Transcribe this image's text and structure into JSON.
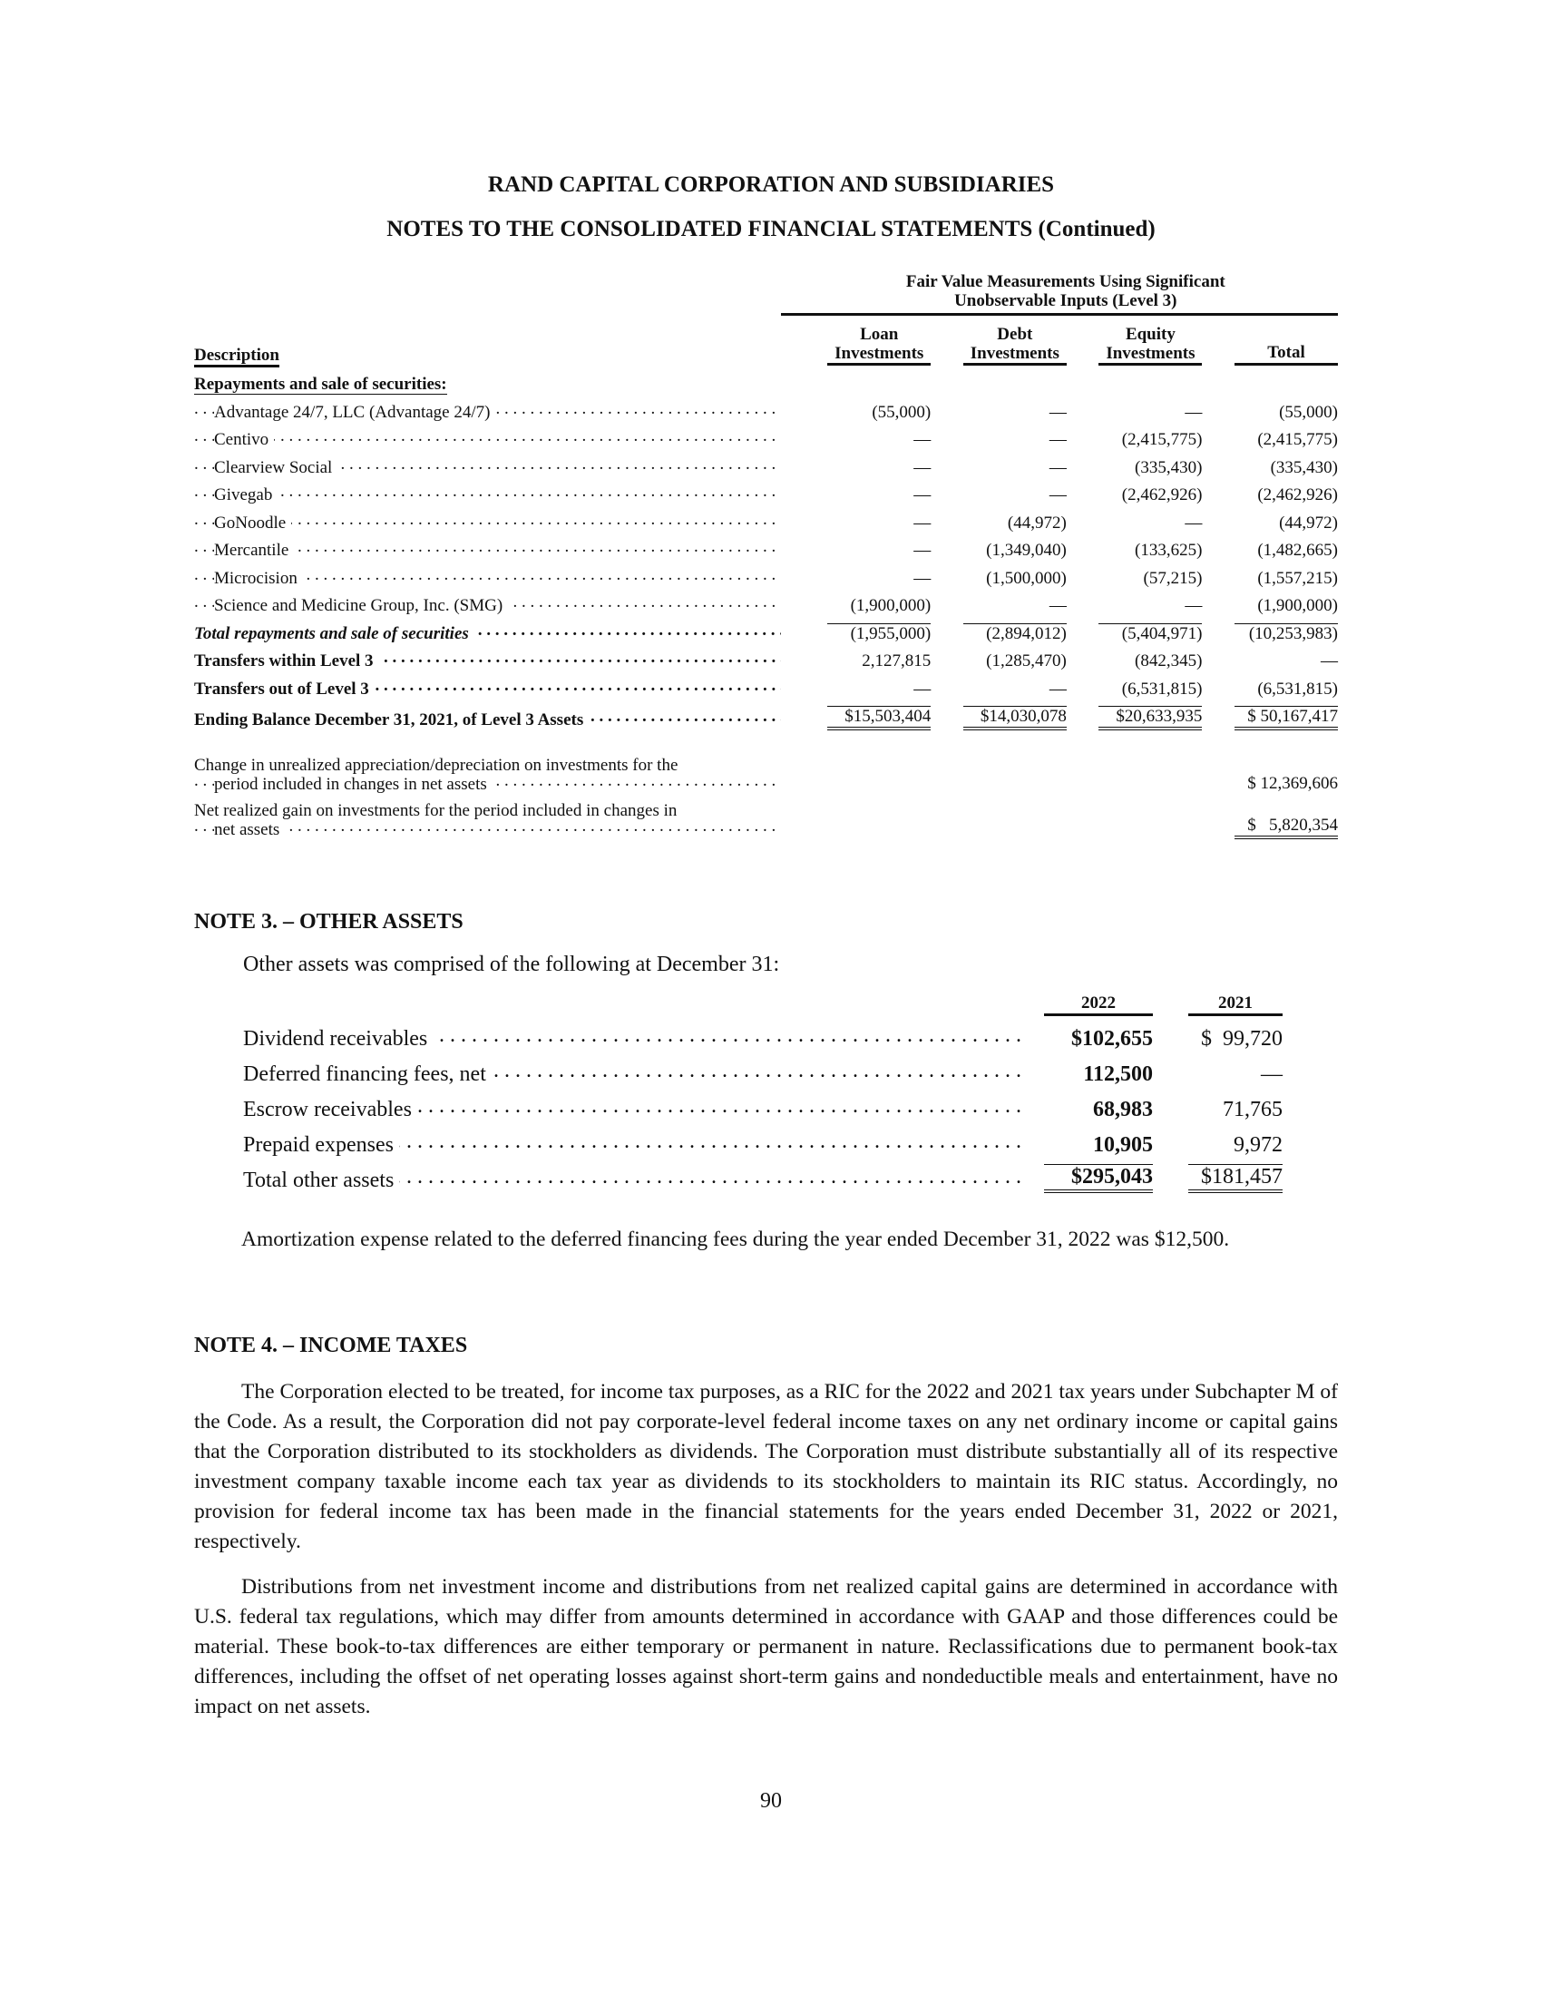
{
  "header": {
    "company": "RAND CAPITAL CORPORATION AND SUBSIDIARIES",
    "subtitle": "NOTES TO THE CONSOLIDATED FINANCIAL STATEMENTS (Continued)"
  },
  "level3_table": {
    "group_header_line1": "Fair Value Measurements Using Significant",
    "group_header_line2": "Unobservable Inputs (Level 3)",
    "columns": {
      "description": "Description",
      "loan_1": "Loan",
      "loan_2": "Investments",
      "debt_1": "Debt",
      "debt_2": "Investments",
      "equity_1": "Equity",
      "equity_2": "Investments",
      "total": "Total"
    },
    "section_label": "Repayments and sale of securities:",
    "rows": [
      {
        "label": "Advantage 24/7, LLC (Advantage 24/7)",
        "loan": "(55,000)",
        "debt": "—",
        "equity": "—",
        "total": "(55,000)"
      },
      {
        "label": "Centivo",
        "loan": "—",
        "debt": "—",
        "equity": "(2,415,775)",
        "total": "(2,415,775)"
      },
      {
        "label": "Clearview Social",
        "loan": "—",
        "debt": "—",
        "equity": "(335,430)",
        "total": "(335,430)"
      },
      {
        "label": "Givegab",
        "loan": "—",
        "debt": "—",
        "equity": "(2,462,926)",
        "total": "(2,462,926)"
      },
      {
        "label": "GoNoodle",
        "loan": "—",
        "debt": "(44,972)",
        "equity": "—",
        "total": "(44,972)"
      },
      {
        "label": "Mercantile",
        "loan": "—",
        "debt": "(1,349,040)",
        "equity": "(133,625)",
        "total": "(1,482,665)"
      },
      {
        "label": "Microcision",
        "loan": "—",
        "debt": "(1,500,000)",
        "equity": "(57,215)",
        "total": "(1,557,215)"
      },
      {
        "label": "Science and Medicine Group, Inc. (SMG)",
        "loan": "(1,900,000)",
        "debt": "—",
        "equity": "—",
        "total": "(1,900,000)"
      }
    ],
    "total_row": {
      "label": "Total repayments and sale of securities",
      "loan": "(1,955,000)",
      "debt": "(2,894,012)",
      "equity": "(5,404,971)",
      "total": "(10,253,983)"
    },
    "transfers_within": {
      "label": "Transfers within Level 3",
      "loan": "2,127,815",
      "debt": "(1,285,470)",
      "equity": "(842,345)",
      "total": "—"
    },
    "transfers_out": {
      "label": "Transfers out of Level 3",
      "loan": "—",
      "debt": "—",
      "equity": "(6,531,815)",
      "total": "(6,531,815)"
    },
    "ending": {
      "label": "Ending Balance December 31, 2021, of Level 3 Assets",
      "loan": "$15,503,404",
      "debt": "$14,030,078",
      "equity": "$20,633,935",
      "total": "$ 50,167,417"
    },
    "unrealized": {
      "line1": "Change in unrealized appreciation/depreciation on investments for the",
      "line2": "period included in changes in net assets",
      "total": "$ 12,369,606"
    },
    "realized": {
      "line1": "Net realized gain on investments for the period included in changes in",
      "line2": "net assets",
      "total": "$   5,820,354"
    }
  },
  "note3": {
    "heading": "NOTE 3. – OTHER ASSETS",
    "intro": "Other assets was comprised of the following at December 31:",
    "col_2022": "2022",
    "col_2021": "2021",
    "rows": [
      {
        "label": "Dividend receivables",
        "v2022": "$102,655",
        "v2021": "$  99,720"
      },
      {
        "label": "Deferred financing fees, net",
        "v2022": "112,500",
        "v2021": "—"
      },
      {
        "label": "Escrow receivables",
        "v2022": "68,983",
        "v2021": "71,765"
      },
      {
        "label": "Prepaid expenses",
        "v2022": "10,905",
        "v2021": "9,972"
      }
    ],
    "total": {
      "label": "Total other assets",
      "v2022": "$295,043",
      "v2021": "$181,457"
    },
    "amortization": "Amortization expense related to the deferred financing fees during the year ended December 31, 2022 was $12,500."
  },
  "note4": {
    "heading": "NOTE 4. – INCOME TAXES",
    "p1": "The Corporation elected to be treated, for income tax purposes, as a RIC for the 2022 and 2021 tax years under Subchapter M of the Code. As a result, the Corporation did not pay corporate-level federal income taxes on any net ordinary income or capital gains that the Corporation distributed to its stockholders as dividends. The Corporation must distribute substantially all of its respective investment company taxable income each tax year as dividends to its stockholders to maintain its RIC status. Accordingly, no provision for federal income tax has been made in the financial statements for the years ended December 31, 2022 or 2021, respectively.",
    "p2": "Distributions from net investment income and distributions from net realized capital gains are determined in accordance with U.S. federal tax regulations, which may differ from amounts determined in accordance with GAAP and those differences could be material. These book-to-tax differences are either temporary or permanent in nature. Reclassifications due to permanent book-tax differences, including the offset of net operating losses against short-term gains and nondeductible meals and entertainment, have no impact on net assets."
  },
  "footer": {
    "page_number": "90"
  }
}
